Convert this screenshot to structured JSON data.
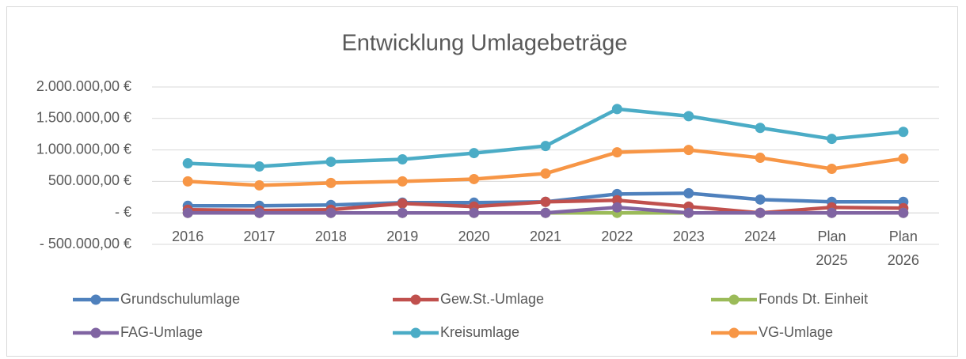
{
  "chart_data": {
    "type": "line",
    "title": "Entwicklung Umlagebeträge",
    "categories": [
      "2016",
      "2017",
      "2018",
      "2019",
      "2020",
      "2021",
      "2022",
      "2023",
      "2024",
      "Plan 2025",
      "Plan 2026"
    ],
    "series": [
      {
        "name": "Grundschulumlage",
        "color": "#4f81bd",
        "values": [
          112000,
          112000,
          125000,
          162000,
          162000,
          175000,
          300000,
          312000,
          212000,
          175000,
          175000
        ]
      },
      {
        "name": "Gew.St.-Umlage",
        "color": "#c0504d",
        "values": [
          50000,
          37000,
          50000,
          150000,
          100000,
          175000,
          200000,
          100000,
          0,
          87000,
          75000
        ]
      },
      {
        "name": "Fonds Dt. Einheit",
        "color": "#9bbb59",
        "values": [
          0,
          0,
          0,
          0,
          0,
          0,
          0,
          0,
          0,
          0,
          0
        ]
      },
      {
        "name": "FAG-Umlage",
        "color": "#8064a2",
        "values": [
          0,
          0,
          0,
          0,
          0,
          0,
          87000,
          0,
          0,
          0,
          0
        ]
      },
      {
        "name": "Kreisumlage",
        "color": "#4bacc6",
        "values": [
          787000,
          737000,
          812000,
          850000,
          950000,
          1062000,
          1650000,
          1537000,
          1350000,
          1175000,
          1287000
        ]
      },
      {
        "name": "VG-Umlage",
        "color": "#f79646",
        "values": [
          500000,
          437000,
          475000,
          500000,
          537000,
          625000,
          962000,
          1000000,
          875000,
          700000,
          862000
        ]
      }
    ],
    "ylim": [
      -500000,
      2000000
    ],
    "yticks": [
      {
        "value": -500000,
        "label": "- 500.000,00 €"
      },
      {
        "value": 0,
        "label": "-   €"
      },
      {
        "value": 500000,
        "label": "500.000,00 €"
      },
      {
        "value": 1000000,
        "label": "1.000.000,00 €"
      },
      {
        "value": 1500000,
        "label": "1.500.000,00 €"
      },
      {
        "value": 2000000,
        "label": "2.000.000,00 €"
      }
    ],
    "grid": true,
    "legend": "bottom"
  }
}
